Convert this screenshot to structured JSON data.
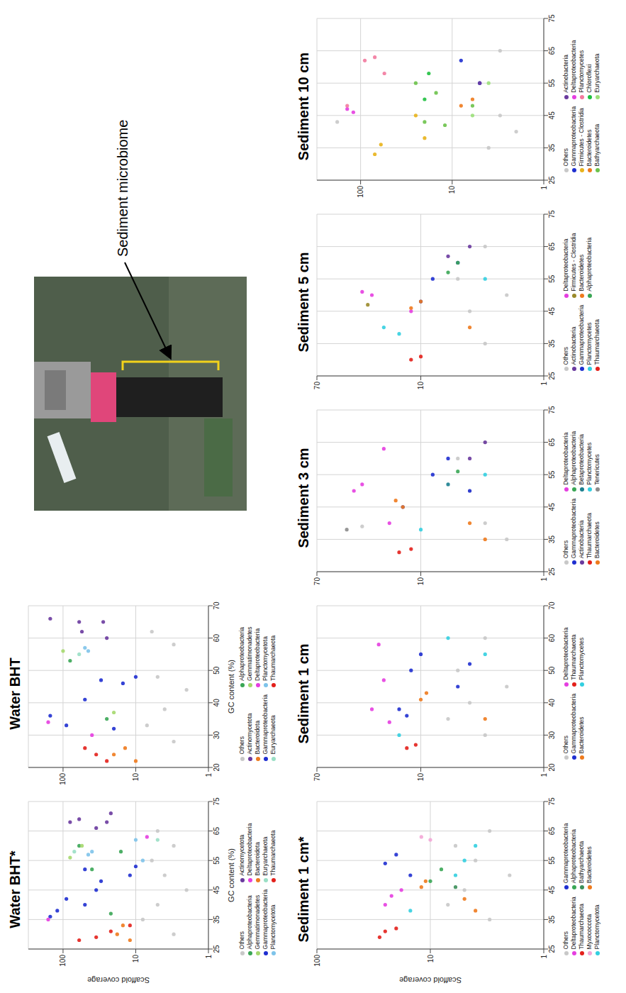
{
  "chart_data": [
    {
      "type": "scatter",
      "title": "Water BHT*",
      "x_label": "GC content (%)",
      "y_label": "Scaffold coverage",
      "xlim": [
        25,
        75
      ],
      "xticks": [
        25,
        35,
        45,
        55,
        65,
        75
      ],
      "ylim": [
        1,
        300
      ],
      "yticks": [
        1,
        10,
        100
      ],
      "log": "y",
      "grid": true,
      "legend": "bottom",
      "series": [
        {
          "name": "Others",
          "color": "#c8c8c8",
          "x": [
            30,
            40,
            50,
            60,
            45,
            55,
            35,
            65
          ],
          "y": [
            3,
            5,
            4,
            3,
            2,
            6,
            8,
            5
          ]
        },
        {
          "name": "Alphaproteobacteria",
          "color": "#3aa655",
          "x": [
            37,
            52,
            60,
            58
          ],
          "y": [
            22,
            40,
            60,
            16
          ]
        },
        {
          "name": "Gemmatimonadetes",
          "color": "#a5d86e",
          "x": [
            56,
            60
          ],
          "y": [
            80,
            55
          ]
        },
        {
          "name": "Gammaproteobacteria",
          "color": "#1f2fd0",
          "x": [
            36,
            38,
            42,
            40,
            45,
            48,
            50,
            53,
            52
          ],
          "y": [
            150,
            120,
            90,
            50,
            35,
            30,
            12,
            10,
            50
          ]
        },
        {
          "name": "Planctomycetota",
          "color": "#7ec3ea",
          "x": [
            57,
            58,
            55,
            62
          ],
          "y": [
            45,
            40,
            8,
            10
          ]
        },
        {
          "name": "Actinomycetota",
          "color": "#6a3a9e",
          "x": [
            68,
            66,
            68,
            71,
            69
          ],
          "y": [
            80,
            35,
            25,
            22,
            60
          ]
        },
        {
          "name": "Deltaproteobacteria",
          "color": "#e53ee0",
          "x": [
            35,
            63
          ],
          "y": [
            160,
            7
          ]
        },
        {
          "name": "Bacteroidota",
          "color": "#ee7a1d",
          "x": [
            30,
            33,
            28
          ],
          "y": [
            18,
            15,
            12
          ]
        },
        {
          "name": "Euryarchaeota",
          "color": "#9adfc5",
          "x": [
            58,
            62
          ],
          "y": [
            70,
            5
          ]
        },
        {
          "name": "Thaumarchaeota",
          "color": "#e3201b",
          "x": [
            29,
            31,
            28,
            33
          ],
          "y": [
            35,
            22,
            60,
            12
          ]
        }
      ]
    },
    {
      "type": "scatter",
      "title": "Water BHT",
      "x_label": "GC content (%)",
      "xlim": [
        20,
        70
      ],
      "xticks": [
        20,
        30,
        40,
        50,
        60,
        70
      ],
      "ylim": [
        1,
        300
      ],
      "yticks": [
        1,
        10,
        100
      ],
      "log": "y",
      "grid": true,
      "legend": "bottom",
      "series": [
        {
          "name": "Others",
          "color": "#c8c8c8",
          "x": [
            28,
            38,
            48,
            58,
            44,
            62,
            33
          ],
          "y": [
            3,
            4,
            5,
            3,
            2,
            6,
            7
          ]
        },
        {
          "name": "Actinomycetota",
          "color": "#6a3a9e",
          "x": [
            66,
            65,
            62,
            65,
            60
          ],
          "y": [
            150,
            60,
            55,
            28,
            25
          ]
        },
        {
          "name": "Bacteroidota",
          "color": "#ee7a1d",
          "x": [
            24,
            26,
            22
          ],
          "y": [
            20,
            14,
            10
          ]
        },
        {
          "name": "Gammaproteobacteria",
          "color": "#1f2fd0",
          "x": [
            36,
            33,
            41,
            47,
            46,
            48,
            32
          ],
          "y": [
            150,
            90,
            50,
            30,
            15,
            10,
            20
          ]
        },
        {
          "name": "Euryarchaeota",
          "color": "#9adfc5",
          "x": [
            55
          ],
          "y": [
            60
          ]
        },
        {
          "name": "Alphaproteobacteria",
          "color": "#3aa655",
          "x": [
            53,
            35
          ],
          "y": [
            80,
            25
          ]
        },
        {
          "name": "Gemmatimonadetes",
          "color": "#a5d86e",
          "x": [
            56,
            37
          ],
          "y": [
            100,
            20
          ]
        },
        {
          "name": "Deltaproteobacteria",
          "color": "#e53ee0",
          "x": [
            34,
            30
          ],
          "y": [
            160,
            40
          ]
        },
        {
          "name": "Planctomycetota",
          "color": "#7ec3ea",
          "x": [
            57,
            56
          ],
          "y": [
            50,
            45
          ]
        },
        {
          "name": "Thaumarchaeota",
          "color": "#e3201b",
          "x": [
            24,
            22,
            26
          ],
          "y": [
            35,
            25,
            50
          ]
        }
      ]
    },
    {
      "type": "scatter",
      "title": "Sediment 1 cm*",
      "y_label": "Scaffold coverage",
      "xlim": [
        25,
        75
      ],
      "xticks": [
        25,
        35,
        45,
        55,
        65,
        75
      ],
      "ylim": [
        1,
        100
      ],
      "yticks": [
        1,
        10,
        100
      ],
      "log": "y",
      "grid": true,
      "legend": "bottom",
      "series": [
        {
          "name": "Others",
          "color": "#c8c8c8",
          "x": [
            35,
            45,
            55,
            65,
            50,
            40,
            60
          ],
          "y": [
            3,
            5,
            4,
            3,
            2,
            7,
            6
          ]
        },
        {
          "name": "Deltaproteobacteria",
          "color": "#e53ee0",
          "x": [
            43,
            45,
            40
          ],
          "y": [
            22,
            18,
            25
          ]
        },
        {
          "name": "Thaumarchaeota",
          "color": "#e3201b",
          "x": [
            31,
            32,
            29
          ],
          "y": [
            25,
            20,
            28
          ]
        },
        {
          "name": "Myxococcota",
          "color": "#f3a6d6",
          "x": [
            62,
            63
          ],
          "y": [
            10,
            12
          ]
        },
        {
          "name": "Planctomycetota",
          "color": "#33cfe0",
          "x": [
            38,
            55,
            60,
            50
          ],
          "y": [
            15,
            5,
            4,
            6
          ]
        },
        {
          "name": "Gammaproteobacteria",
          "color": "#1f2fd0",
          "x": [
            54,
            57,
            50
          ],
          "y": [
            25,
            20,
            15
          ]
        },
        {
          "name": "Alphaproteobacteria",
          "color": "#3aa655",
          "x": [
            48,
            52
          ],
          "y": [
            10,
            8
          ]
        },
        {
          "name": "Bathyarchaeota",
          "color": "#3c8f5a",
          "x": [
            46
          ],
          "y": [
            6
          ]
        },
        {
          "name": "Bacteroidetes",
          "color": "#ee7a1d",
          "x": [
            46,
            48,
            42,
            38
          ],
          "y": [
            12,
            11,
            5,
            4
          ]
        }
      ]
    },
    {
      "type": "scatter",
      "title": "Sediment 1 cm",
      "xlim": [
        20,
        70
      ],
      "xticks": [
        20,
        30,
        40,
        50,
        60,
        70
      ],
      "ylim": [
        1,
        70
      ],
      "yticks": [
        1,
        10,
        70
      ],
      "log": "y",
      "grid": true,
      "legend": "bottom",
      "series": [
        {
          "name": "Others",
          "color": "#c8c8c8",
          "x": [
            30,
            40,
            50,
            60,
            45,
            35
          ],
          "y": [
            3,
            4,
            5,
            3,
            2,
            6
          ]
        },
        {
          "name": "Gammaproteobacteria",
          "color": "#1f2fd0",
          "x": [
            38,
            36,
            50,
            55,
            45,
            52
          ],
          "y": [
            15,
            13,
            12,
            10,
            5,
            4
          ]
        },
        {
          "name": "Bacteroidetes",
          "color": "#ee7a1d",
          "x": [
            41,
            43,
            35
          ],
          "y": [
            10,
            9,
            3
          ]
        },
        {
          "name": "Deltaproteobacteria",
          "color": "#e53ee0",
          "x": [
            47,
            58,
            38,
            34
          ],
          "y": [
            20,
            22,
            25,
            18
          ]
        },
        {
          "name": "Thaumarchaeota",
          "color": "#e3201b",
          "x": [
            26,
            27
          ],
          "y": [
            13,
            11
          ]
        },
        {
          "name": "Planctomycetes",
          "color": "#33cfe0",
          "x": [
            30,
            60,
            55
          ],
          "y": [
            15,
            6,
            3
          ]
        }
      ]
    },
    {
      "type": "scatter",
      "title": "Sediment 3 cm",
      "xlim": [
        25,
        75
      ],
      "xticks": [
        25,
        35,
        45,
        55,
        65,
        75
      ],
      "ylim": [
        1,
        70
      ],
      "yticks": [
        1,
        10,
        70
      ],
      "log": "y",
      "grid": true,
      "legend": "bottom",
      "series": [
        {
          "name": "Others",
          "color": "#c8c8c8",
          "x": [
            40,
            50,
            60,
            35,
            65,
            39
          ],
          "y": [
            3,
            4,
            5,
            2,
            3,
            30
          ]
        },
        {
          "name": "Gammaproteobacteria",
          "color": "#1f2fd0",
          "x": [
            45,
            55,
            60,
            50
          ],
          "y": [
            14,
            8,
            6,
            4
          ]
        },
        {
          "name": "Actinobacteria",
          "color": "#6a3a9e",
          "x": [
            60,
            65
          ],
          "y": [
            4,
            3
          ]
        },
        {
          "name": "Thaumarchaeota",
          "color": "#e3201b",
          "x": [
            31,
            32
          ],
          "y": [
            15,
            12
          ]
        },
        {
          "name": "Bacteroidetes",
          "color": "#ee7a1d",
          "x": [
            47,
            45,
            40,
            35
          ],
          "y": [
            16,
            14,
            4,
            3
          ]
        },
        {
          "name": "Deltaproteobacteria",
          "color": "#e53ee0",
          "x": [
            52,
            50,
            40,
            63
          ],
          "y": [
            30,
            35,
            18,
            20
          ]
        },
        {
          "name": "Alphaproteobacteria",
          "color": "#3aa655",
          "x": [
            56
          ],
          "y": [
            5
          ]
        },
        {
          "name": "Betaproteobacteria",
          "color": "#1b7f8f",
          "x": [
            52
          ],
          "y": [
            6
          ]
        },
        {
          "name": "Planctomycetes",
          "color": "#33cfe0",
          "x": [
            38,
            55
          ],
          "y": [
            10,
            3
          ]
        },
        {
          "name": "Tenericutes",
          "color": "#8c8c8c",
          "x": [
            38
          ],
          "y": [
            40
          ]
        }
      ]
    },
    {
      "type": "scatter",
      "title": "Sediment 5 cm",
      "xlim": [
        25,
        75
      ],
      "xticks": [
        25,
        35,
        45,
        55,
        65,
        75
      ],
      "ylim": [
        1,
        70
      ],
      "yticks": [
        1,
        10,
        70
      ],
      "log": "y",
      "grid": true,
      "legend": "bottom",
      "series": [
        {
          "name": "Others",
          "color": "#c8c8c8",
          "x": [
            35,
            45,
            55,
            65,
            50
          ],
          "y": [
            3,
            4,
            5,
            3,
            2
          ]
        },
        {
          "name": "Actinobacteria",
          "color": "#6a3a9e",
          "x": [
            62,
            65
          ],
          "y": [
            6,
            4
          ]
        },
        {
          "name": "Gammaproteobacteria",
          "color": "#1f2fd0",
          "x": [
            55,
            48,
            60
          ],
          "y": [
            8,
            10,
            5
          ]
        },
        {
          "name": "Planctomycetes",
          "color": "#33cfe0",
          "x": [
            40,
            38,
            55
          ],
          "y": [
            20,
            15,
            3
          ]
        },
        {
          "name": "Thaumarchaeota",
          "color": "#e3201b",
          "x": [
            30,
            31
          ],
          "y": [
            12,
            10
          ]
        },
        {
          "name": "Deltaproteobacteria",
          "color": "#e53ee0",
          "x": [
            51,
            50,
            45
          ],
          "y": [
            30,
            25,
            12
          ]
        },
        {
          "name": "Firmicutes - Clostridia",
          "color": "#9a8a2a",
          "x": [
            47
          ],
          "y": [
            27
          ]
        },
        {
          "name": "Bacteroidetes",
          "color": "#ee7a1d",
          "x": [
            46,
            48,
            40
          ],
          "y": [
            12,
            10,
            4
          ]
        },
        {
          "name": "Alphaproteobacteria",
          "color": "#3aa655",
          "x": [
            60,
            57
          ],
          "y": [
            5,
            6
          ]
        }
      ]
    },
    {
      "type": "scatter",
      "title": "Sediment 10 cm",
      "xlim": [
        25,
        75
      ],
      "xticks": [
        25,
        35,
        45,
        55,
        65,
        75
      ],
      "ylim": [
        1,
        300
      ],
      "yticks": [
        1,
        10,
        100
      ],
      "log": "y",
      "grid": true,
      "legend": "bottom",
      "series": [
        {
          "name": "Others",
          "color": "#c8c8c8",
          "x": [
            35,
            45,
            55,
            65,
            40,
            43
          ],
          "y": [
            4,
            3,
            5,
            3,
            2,
            180
          ]
        },
        {
          "name": "Gammaproteobacteria",
          "color": "#1f2fd0",
          "x": [
            62,
            55
          ],
          "y": [
            8,
            5
          ]
        },
        {
          "name": "Firmicutes - Clostridia",
          "color": "#e8b21a",
          "x": [
            33,
            36,
            45,
            38
          ],
          "y": [
            70,
            60,
            25,
            20
          ]
        },
        {
          "name": "Bacteroidetes",
          "color": "#ee7a1d",
          "x": [
            48,
            50
          ],
          "y": [
            8,
            6
          ]
        },
        {
          "name": "Bathyarchaeota",
          "color": "#6cc24a",
          "x": [
            43,
            42,
            52,
            55,
            48
          ],
          "y": [
            20,
            12,
            15,
            25,
            6
          ]
        },
        {
          "name": "Actinobacteria",
          "color": "#6a3a9e",
          "x": [
            55
          ],
          "y": [
            5
          ]
        },
        {
          "name": "Deltaproteobacteria",
          "color": "#e53ee0",
          "x": [
            47,
            46
          ],
          "y": [
            140,
            120
          ]
        },
        {
          "name": "Planctomycetes",
          "color": "#f27a9e",
          "x": [
            48,
            62,
            63,
            58
          ],
          "y": [
            140,
            90,
            70,
            55
          ]
        },
        {
          "name": "Chloroflexi",
          "color": "#20c040",
          "x": [
            50,
            58
          ],
          "y": [
            20,
            18
          ]
        },
        {
          "name": "Euryarchaeota",
          "color": "#9be07a",
          "x": [
            45,
            55
          ],
          "y": [
            6,
            4
          ]
        }
      ]
    }
  ],
  "photo": {
    "label": "Sediment microbiome"
  }
}
